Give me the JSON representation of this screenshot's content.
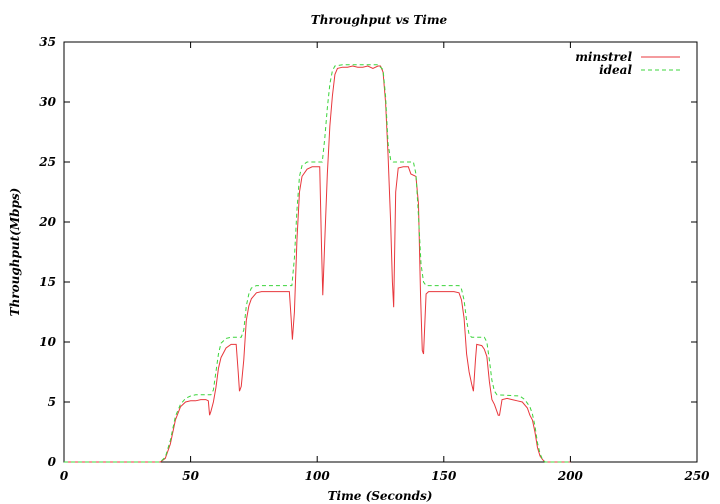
{
  "chart_data": {
    "type": "line",
    "title": "Throughput vs Time",
    "xlabel": "Time (Seconds)",
    "ylabel": "Throughput(Mbps)",
    "xlim": [
      0,
      250
    ],
    "ylim": [
      0,
      35
    ],
    "x_ticks": [
      0,
      50,
      100,
      150,
      200,
      250
    ],
    "y_ticks": [
      0,
      5,
      10,
      15,
      20,
      25,
      30,
      35
    ],
    "grid": false,
    "legend_position": "top-right",
    "series": [
      {
        "name": "minstrel",
        "color": "#e8373c",
        "dash": "solid",
        "points": [
          [
            0,
            0
          ],
          [
            38,
            0
          ],
          [
            40,
            0.3
          ],
          [
            42,
            1.5
          ],
          [
            44,
            3.5
          ],
          [
            46,
            4.6
          ],
          [
            48,
            5.0
          ],
          [
            50,
            5.1
          ],
          [
            52,
            5.1
          ],
          [
            54,
            5.2
          ],
          [
            56,
            5.2
          ],
          [
            57,
            5.1
          ],
          [
            57.5,
            3.9
          ],
          [
            58,
            4.2
          ],
          [
            59,
            5.0
          ],
          [
            60,
            6.2
          ],
          [
            61,
            7.8
          ],
          [
            62,
            8.7
          ],
          [
            64,
            9.5
          ],
          [
            66,
            9.8
          ],
          [
            68,
            9.8
          ],
          [
            68.8,
            7.5
          ],
          [
            69.3,
            5.9
          ],
          [
            70,
            6.3
          ],
          [
            71,
            8.5
          ],
          [
            72,
            11.8
          ],
          [
            73,
            13.0
          ],
          [
            74,
            13.6
          ],
          [
            76,
            14.1
          ],
          [
            78,
            14.2
          ],
          [
            82,
            14.2
          ],
          [
            86,
            14.2
          ],
          [
            89,
            14.2
          ],
          [
            89.7,
            12.0
          ],
          [
            90.2,
            10.2
          ],
          [
            91,
            12.5
          ],
          [
            92,
            18.5
          ],
          [
            93,
            22.5
          ],
          [
            94,
            23.8
          ],
          [
            96,
            24.4
          ],
          [
            98,
            24.6
          ],
          [
            101,
            24.6
          ],
          [
            101.7,
            18.0
          ],
          [
            102.2,
            13.9
          ],
          [
            103,
            18.5
          ],
          [
            104,
            24.0
          ],
          [
            105,
            28.0
          ],
          [
            106,
            30.5
          ],
          [
            107,
            32.3
          ],
          [
            108,
            32.8
          ],
          [
            110,
            32.9
          ],
          [
            112,
            32.9
          ],
          [
            114,
            33.0
          ],
          [
            116,
            32.9
          ],
          [
            118,
            32.9
          ],
          [
            120,
            33.0
          ],
          [
            122,
            32.8
          ],
          [
            124,
            33.0
          ],
          [
            125,
            33.0
          ],
          [
            126,
            32.5
          ],
          [
            127,
            30.0
          ],
          [
            128,
            25.5
          ],
          [
            129,
            20.0
          ],
          [
            129.7,
            15.0
          ],
          [
            130.2,
            12.9
          ],
          [
            131,
            22.5
          ],
          [
            132,
            24.5
          ],
          [
            134,
            24.6
          ],
          [
            136,
            24.6
          ],
          [
            137,
            24.0
          ],
          [
            139,
            23.8
          ],
          [
            140,
            21.5
          ],
          [
            140.8,
            14.0
          ],
          [
            141.5,
            9.3
          ],
          [
            142,
            9.0
          ],
          [
            143,
            14.0
          ],
          [
            144,
            14.2
          ],
          [
            146,
            14.2
          ],
          [
            150,
            14.2
          ],
          [
            154,
            14.2
          ],
          [
            156,
            14.1
          ],
          [
            157,
            13.5
          ],
          [
            158,
            12.0
          ],
          [
            159,
            9.0
          ],
          [
            160,
            7.5
          ],
          [
            161,
            6.5
          ],
          [
            161.7,
            5.9
          ],
          [
            162.5,
            8.5
          ],
          [
            163,
            9.8
          ],
          [
            165,
            9.7
          ],
          [
            166,
            9.4
          ],
          [
            167,
            8.8
          ],
          [
            168,
            6.7
          ],
          [
            169,
            5.2
          ],
          [
            170,
            4.8
          ],
          [
            171,
            4.2
          ],
          [
            171.5,
            3.9
          ],
          [
            172,
            3.9
          ],
          [
            173,
            5.2
          ],
          [
            175,
            5.3
          ],
          [
            177,
            5.2
          ],
          [
            179,
            5.1
          ],
          [
            181,
            5.0
          ],
          [
            183,
            4.5
          ],
          [
            184,
            3.9
          ],
          [
            185,
            3.5
          ],
          [
            186,
            2.5
          ],
          [
            187,
            1.2
          ],
          [
            188,
            0.5
          ],
          [
            189,
            0.2
          ],
          [
            190,
            0
          ],
          [
            200,
            0
          ]
        ]
      },
      {
        "name": "ideal",
        "color": "#3cd43c",
        "dash": "dashed",
        "points": [
          [
            0,
            0
          ],
          [
            38,
            0
          ],
          [
            40,
            0.4
          ],
          [
            42,
            1.8
          ],
          [
            44,
            3.8
          ],
          [
            46,
            4.8
          ],
          [
            48,
            5.3
          ],
          [
            50,
            5.5
          ],
          [
            52,
            5.6
          ],
          [
            58,
            5.6
          ],
          [
            59,
            6.0
          ],
          [
            60,
            7.5
          ],
          [
            61,
            9.0
          ],
          [
            62,
            9.9
          ],
          [
            64,
            10.3
          ],
          [
            66,
            10.4
          ],
          [
            70,
            10.4
          ],
          [
            71,
            11.0
          ],
          [
            72,
            13.0
          ],
          [
            73,
            14.0
          ],
          [
            74,
            14.5
          ],
          [
            76,
            14.7
          ],
          [
            90,
            14.7
          ],
          [
            91,
            17.0
          ],
          [
            92,
            21.0
          ],
          [
            93,
            23.8
          ],
          [
            94,
            24.7
          ],
          [
            96,
            25.0
          ],
          [
            102,
            25.0
          ],
          [
            103,
            27.0
          ],
          [
            104,
            29.5
          ],
          [
            105,
            31.5
          ],
          [
            106,
            32.6
          ],
          [
            107,
            33.0
          ],
          [
            110,
            33.1
          ],
          [
            124,
            33.1
          ],
          [
            126,
            32.7
          ],
          [
            127,
            30.5
          ],
          [
            128,
            26.5
          ],
          [
            129,
            25.2
          ],
          [
            130,
            25.0
          ],
          [
            138,
            25.0
          ],
          [
            139,
            24.0
          ],
          [
            140,
            20.5
          ],
          [
            141,
            16.5
          ],
          [
            142,
            15.0
          ],
          [
            143,
            14.7
          ],
          [
            156,
            14.7
          ],
          [
            157,
            14.4
          ],
          [
            158,
            13.5
          ],
          [
            159,
            11.8
          ],
          [
            160,
            10.6
          ],
          [
            161,
            10.4
          ],
          [
            166,
            10.4
          ],
          [
            167,
            10.0
          ],
          [
            168,
            8.5
          ],
          [
            169,
            6.8
          ],
          [
            170,
            5.9
          ],
          [
            171,
            5.6
          ],
          [
            180,
            5.5
          ],
          [
            182,
            5.2
          ],
          [
            184,
            4.6
          ],
          [
            185,
            4.0
          ],
          [
            186,
            3.0
          ],
          [
            187,
            1.6
          ],
          [
            188,
            0.7
          ],
          [
            189,
            0.2
          ],
          [
            190,
            0
          ],
          [
            200,
            0
          ]
        ]
      }
    ]
  }
}
